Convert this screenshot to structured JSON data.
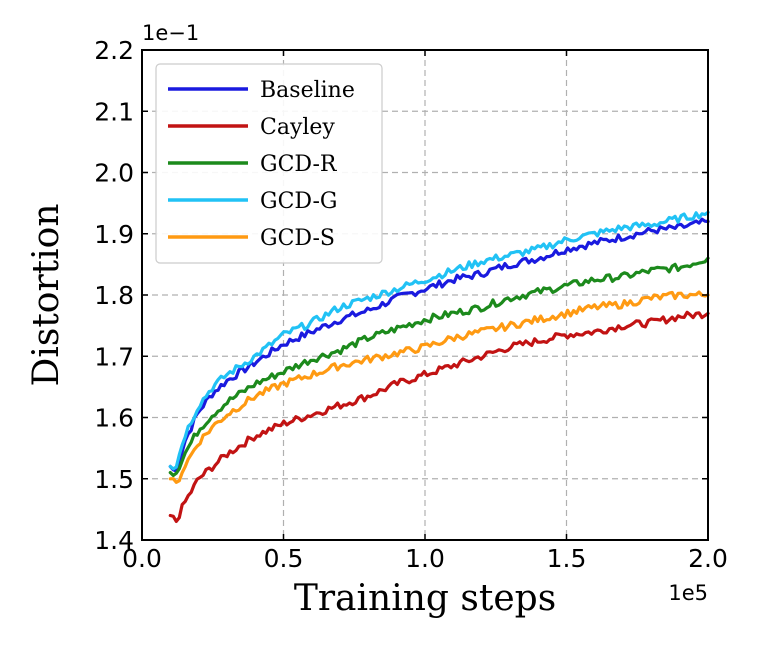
{
  "chart_data": {
    "type": "line",
    "title": "",
    "xlabel": "Training steps",
    "ylabel": "Distortion",
    "x_exponent_label": "1e5",
    "y_exponent_label": "1e−1",
    "xlim": [
      0.0,
      2.0
    ],
    "ylim": [
      1.4,
      2.2
    ],
    "x_ticks": [
      0.0,
      0.5,
      1.0,
      1.5,
      2.0
    ],
    "x_tick_labels": [
      "0.0",
      "0.5",
      "1.0",
      "1.5",
      "2.0"
    ],
    "y_ticks": [
      1.4,
      1.5,
      1.6,
      1.7,
      1.8,
      1.9,
      2.0,
      2.1,
      2.2
    ],
    "y_tick_labels": [
      "1.4",
      "1.5",
      "1.6",
      "1.7",
      "1.8",
      "1.9",
      "2.0",
      "2.1",
      "2.2"
    ],
    "grid": true,
    "legend_position": "top-left",
    "series": [
      {
        "name": "Baseline",
        "color": "#1a1adf",
        "x": [
          0.1,
          0.12,
          0.15,
          0.2,
          0.25,
          0.3,
          0.4,
          0.5,
          0.6,
          0.7,
          0.8,
          0.9,
          1.0,
          1.1,
          1.2,
          1.3,
          1.4,
          1.5,
          1.6,
          1.7,
          1.8,
          1.9,
          2.0
        ],
        "y": [
          1.52,
          1.51,
          1.56,
          1.61,
          1.64,
          1.66,
          1.69,
          1.72,
          1.74,
          1.76,
          1.775,
          1.795,
          1.81,
          1.825,
          1.835,
          1.85,
          1.86,
          1.875,
          1.885,
          1.895,
          1.905,
          1.91,
          1.92
        ]
      },
      {
        "name": "Cayley",
        "color": "#c21313",
        "x": [
          0.1,
          0.12,
          0.15,
          0.2,
          0.25,
          0.3,
          0.4,
          0.5,
          0.6,
          0.7,
          0.8,
          0.9,
          1.0,
          1.1,
          1.2,
          1.3,
          1.4,
          1.5,
          1.6,
          1.7,
          1.8,
          1.9,
          2.0
        ],
        "y": [
          1.44,
          1.43,
          1.46,
          1.5,
          1.52,
          1.54,
          1.57,
          1.59,
          1.605,
          1.62,
          1.635,
          1.655,
          1.67,
          1.685,
          1.7,
          1.715,
          1.725,
          1.735,
          1.74,
          1.75,
          1.755,
          1.765,
          1.77
        ]
      },
      {
        "name": "GCD-R",
        "color": "#1c8a1c",
        "x": [
          0.1,
          0.12,
          0.15,
          0.2,
          0.25,
          0.3,
          0.4,
          0.5,
          0.6,
          0.7,
          0.8,
          0.9,
          1.0,
          1.1,
          1.2,
          1.3,
          1.4,
          1.5,
          1.6,
          1.7,
          1.8,
          1.9,
          2.0
        ],
        "y": [
          1.51,
          1.51,
          1.54,
          1.58,
          1.605,
          1.625,
          1.655,
          1.675,
          1.695,
          1.71,
          1.73,
          1.745,
          1.76,
          1.77,
          1.78,
          1.795,
          1.805,
          1.815,
          1.825,
          1.83,
          1.84,
          1.845,
          1.86
        ]
      },
      {
        "name": "GCD-G",
        "color": "#21c2f5",
        "x": [
          0.1,
          0.12,
          0.15,
          0.2,
          0.25,
          0.3,
          0.4,
          0.5,
          0.6,
          0.7,
          0.8,
          0.9,
          1.0,
          1.1,
          1.2,
          1.3,
          1.4,
          1.5,
          1.6,
          1.7,
          1.8,
          1.9,
          2.0
        ],
        "y": [
          1.52,
          1.52,
          1.57,
          1.62,
          1.65,
          1.67,
          1.7,
          1.735,
          1.755,
          1.78,
          1.795,
          1.81,
          1.825,
          1.84,
          1.855,
          1.865,
          1.875,
          1.89,
          1.9,
          1.91,
          1.915,
          1.925,
          1.935
        ]
      },
      {
        "name": "GCD-S",
        "color": "#ff9a12",
        "x": [
          0.1,
          0.12,
          0.15,
          0.2,
          0.25,
          0.3,
          0.4,
          0.5,
          0.6,
          0.7,
          0.8,
          0.9,
          1.0,
          1.1,
          1.2,
          1.3,
          1.4,
          1.5,
          1.6,
          1.7,
          1.8,
          1.9,
          2.0
        ],
        "y": [
          1.5,
          1.49,
          1.52,
          1.56,
          1.585,
          1.605,
          1.635,
          1.655,
          1.67,
          1.685,
          1.695,
          1.705,
          1.715,
          1.73,
          1.74,
          1.75,
          1.76,
          1.77,
          1.78,
          1.785,
          1.795,
          1.8,
          1.8
        ]
      }
    ]
  }
}
